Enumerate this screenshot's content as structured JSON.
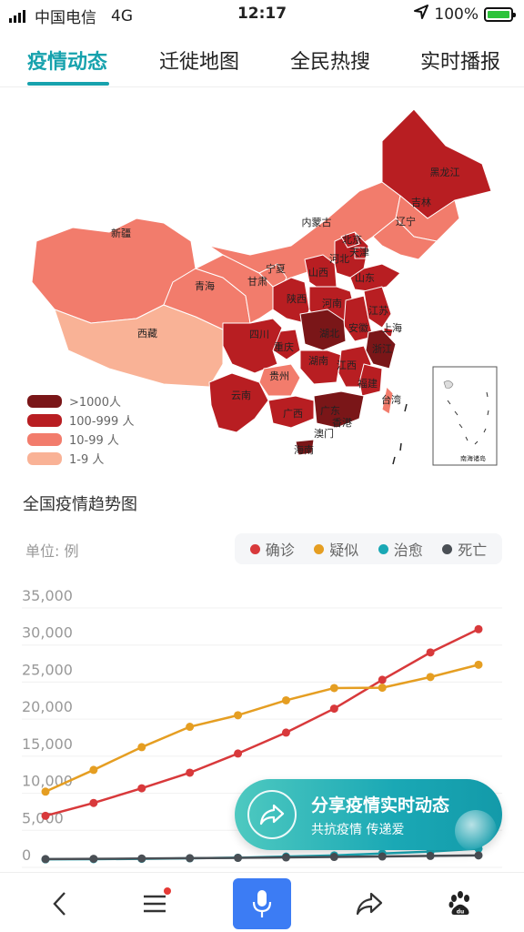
{
  "status_bar": {
    "carrier": "中国电信",
    "network": "4G",
    "time": "12:17",
    "battery": "100%"
  },
  "tabs": [
    {
      "label": "疫情动态",
      "active": true
    },
    {
      "label": "迁徙地图",
      "active": false
    },
    {
      "label": "全民热搜",
      "active": false
    },
    {
      "label": "实时播报",
      "active": false
    }
  ],
  "map": {
    "colors": {
      "level4": "#7a1618",
      "level3": "#b81e22",
      "level2": "#f27c6c",
      "level1": "#f9b296"
    },
    "legend": [
      {
        "label": ">1000人",
        "color": "#7a1618"
      },
      {
        "label": "100-999 人",
        "color": "#b81e22"
      },
      {
        "label": "10-99 人",
        "color": "#f27c6c"
      },
      {
        "label": "1-9 人",
        "color": "#f9b296"
      }
    ],
    "provinces": {
      "heilongjiang": "黑龙江",
      "jilin": "吉林",
      "liaoning": "辽宁",
      "neimenggu": "内蒙古",
      "beijing": "北京",
      "tianjin": "天津",
      "hebei": "河北",
      "shanxi": "山西",
      "shandong": "山东",
      "xinjiang": "新疆",
      "qinghai": "青海",
      "gansu": "甘肃",
      "ningxia": "宁夏",
      "shaanxi": "陕西",
      "henan": "河南",
      "jiangsu": "江苏",
      "anhui": "安徽",
      "shanghai": "上海",
      "xizang": "西藏",
      "sichuan": "四川",
      "chongqing": "重庆",
      "hubei": "湖北",
      "zhejiang": "浙江",
      "hunan": "湖南",
      "jiangxi": "江西",
      "guizhou": "贵州",
      "fujian": "福建",
      "yunnan": "云南",
      "taiwan": "台湾",
      "guangxi": "广西",
      "guangdong": "广东",
      "xianggang": "香港",
      "aomen": "澳门",
      "hainan": "海南",
      "inset": "南海诸岛"
    }
  },
  "trend": {
    "title": "全国疫情趋势图",
    "unit": "单位: 例",
    "legend": [
      {
        "label": "确诊",
        "color": "#d8393b"
      },
      {
        "label": "疑似",
        "color": "#e59e22"
      },
      {
        "label": "治愈",
        "color": "#1aa8b5"
      },
      {
        "label": "死亡",
        "color": "#4a4f55"
      }
    ]
  },
  "chart_data": {
    "type": "line",
    "ylim": [
      0,
      35000
    ],
    "yticks": [
      0,
      5000,
      10000,
      15000,
      20000,
      25000,
      30000,
      35000
    ],
    "ytick_labels": [
      "0",
      "5,000",
      "10,000",
      "15,000",
      "20,000",
      "25,000",
      "30,000",
      "35,000"
    ],
    "x": [
      1,
      2,
      3,
      4,
      5,
      6,
      7,
      8,
      9,
      10
    ],
    "series": [
      {
        "name": "确诊",
        "color": "#d8393b",
        "values": [
          5974,
          7711,
          9692,
          11791,
          14380,
          17205,
          20438,
          24324,
          28018,
          31161
        ]
      },
      {
        "name": "疑似",
        "color": "#e59e22",
        "values": [
          9239,
          12167,
          15238,
          17988,
          19544,
          21558,
          23214,
          23260,
          24702,
          26359
        ]
      },
      {
        "name": "治愈",
        "color": "#1aa8b5",
        "values": [
          103,
          124,
          171,
          243,
          328,
          475,
          632,
          892,
          1153,
          1540
        ]
      },
      {
        "name": "死亡",
        "color": "#4a4f55",
        "values": [
          132,
          170,
          213,
          259,
          304,
          361,
          425,
          490,
          563,
          636
        ]
      }
    ]
  },
  "share": {
    "title": "分享疫情实时动态",
    "subtitle": "共抗疫情 传递爱"
  },
  "bottom_bar": {
    "items": [
      "back-icon",
      "menu-icon",
      "mic-icon",
      "share-icon",
      "baidu-paw-icon"
    ]
  }
}
